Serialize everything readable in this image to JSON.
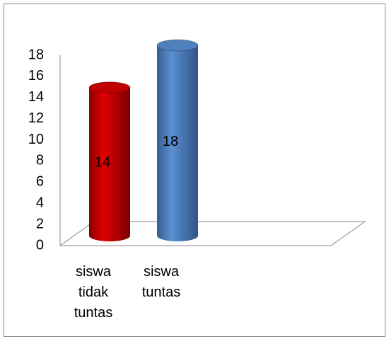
{
  "chart_data": {
    "type": "bar3d-cylinder",
    "categories": [
      "siswa tidak tuntas",
      "siswa tuntas"
    ],
    "series": [
      {
        "values": [
          14,
          18
        ],
        "colors": [
          "#c00000",
          "#4f81bd"
        ]
      }
    ],
    "ylim": [
      0,
      18
    ],
    "yticks": [
      0,
      2,
      4,
      6,
      8,
      10,
      12,
      14,
      16,
      18
    ]
  }
}
